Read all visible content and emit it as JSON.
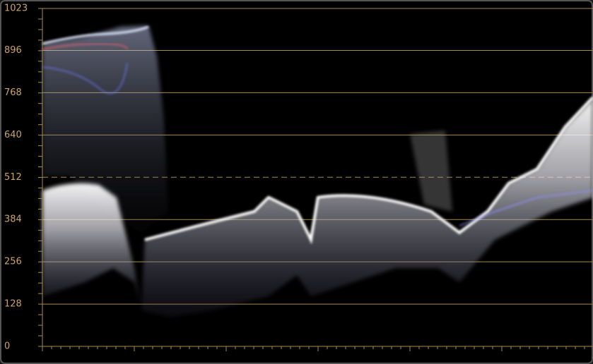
{
  "chart_data": {
    "type": "waveform",
    "ylim": [
      0,
      1023
    ],
    "yticks": [
      0,
      128,
      256,
      384,
      512,
      640,
      768,
      896,
      1023
    ],
    "grid": true,
    "grid_dashed": [
      false,
      false,
      false,
      false,
      true,
      false,
      false,
      false,
      false
    ],
    "grid_color": "#a88a4a",
    "label_color": "#c9a46a"
  }
}
